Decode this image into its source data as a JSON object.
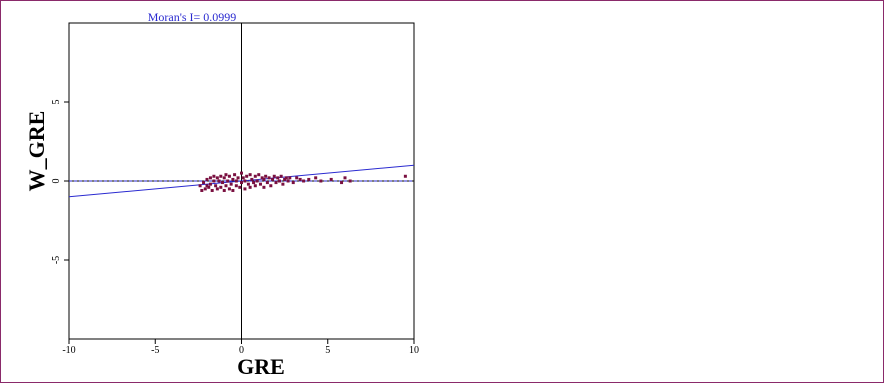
{
  "chart_data": {
    "type": "scatter",
    "title": "Moran's I= 0.0999",
    "xlabel": "GRE",
    "ylabel": "W_GRE",
    "xlim": [
      -10,
      10
    ],
    "ylim": [
      -10,
      10
    ],
    "x_ticks": [
      -10,
      -5,
      0,
      5,
      10
    ],
    "y_ticks": [
      -5,
      0,
      5
    ],
    "x_tick_labels": [
      "-10",
      "-5",
      "0",
      "5",
      "10"
    ],
    "y_tick_labels": [
      "-5",
      "0",
      "5"
    ],
    "regression_slope": 0.0999,
    "grid": false,
    "colors": {
      "points": "#7a1040",
      "regression_line": "#2a2ad0",
      "title": "#2a2ad0",
      "reference_line": "#000000",
      "frame": "#8a2a6a"
    },
    "points": [
      [
        -2.4,
        -0.3
      ],
      [
        -2.3,
        -0.6
      ],
      [
        -2.2,
        -0.1
      ],
      [
        -2.1,
        -0.5
      ],
      [
        -2.0,
        0.1
      ],
      [
        -2.0,
        -0.3
      ],
      [
        -1.9,
        -0.4
      ],
      [
        -1.8,
        0.2
      ],
      [
        -1.8,
        -0.2
      ],
      [
        -1.7,
        -0.6
      ],
      [
        -1.6,
        0.0
      ],
      [
        -1.6,
        0.3
      ],
      [
        -1.5,
        -0.3
      ],
      [
        -1.4,
        -0.5
      ],
      [
        -1.4,
        0.2
      ],
      [
        -1.3,
        0.0
      ],
      [
        -1.2,
        -0.4
      ],
      [
        -1.2,
        0.3
      ],
      [
        -1.1,
        -0.1
      ],
      [
        -1.0,
        -0.6
      ],
      [
        -1.0,
        0.2
      ],
      [
        -0.9,
        0.4
      ],
      [
        -0.9,
        -0.3
      ],
      [
        -0.8,
        0.0
      ],
      [
        -0.7,
        -0.5
      ],
      [
        -0.7,
        0.3
      ],
      [
        -0.6,
        -0.2
      ],
      [
        -0.5,
        0.1
      ],
      [
        -0.5,
        -0.6
      ],
      [
        -0.4,
        0.4
      ],
      [
        -0.3,
        -0.3
      ],
      [
        -0.3,
        0.0
      ],
      [
        -0.2,
        0.2
      ],
      [
        -0.1,
        -0.4
      ],
      [
        0.0,
        0.5
      ],
      [
        0.0,
        -0.1
      ],
      [
        0.1,
        0.2
      ],
      [
        0.2,
        -0.5
      ],
      [
        0.2,
        0.0
      ],
      [
        0.3,
        0.3
      ],
      [
        0.4,
        -0.2
      ],
      [
        0.5,
        0.4
      ],
      [
        0.5,
        -0.4
      ],
      [
        0.6,
        0.1
      ],
      [
        0.7,
        -0.1
      ],
      [
        0.8,
        0.3
      ],
      [
        0.8,
        -0.3
      ],
      [
        0.9,
        0.0
      ],
      [
        1.0,
        0.4
      ],
      [
        1.1,
        -0.2
      ],
      [
        1.2,
        0.2
      ],
      [
        1.3,
        -0.4
      ],
      [
        1.3,
        0.1
      ],
      [
        1.4,
        0.3
      ],
      [
        1.5,
        -0.1
      ],
      [
        1.6,
        0.2
      ],
      [
        1.7,
        -0.3
      ],
      [
        1.8,
        0.1
      ],
      [
        1.9,
        0.3
      ],
      [
        2.0,
        -0.1
      ],
      [
        2.1,
        0.2
      ],
      [
        2.2,
        0.0
      ],
      [
        2.3,
        0.3
      ],
      [
        2.4,
        -0.2
      ],
      [
        2.5,
        0.1
      ],
      [
        2.6,
        0.2
      ],
      [
        2.7,
        0.0
      ],
      [
        2.8,
        0.2
      ],
      [
        3.0,
        -0.1
      ],
      [
        3.2,
        0.2
      ],
      [
        3.4,
        0.1
      ],
      [
        3.6,
        0.0
      ],
      [
        3.9,
        0.1
      ],
      [
        4.3,
        0.2
      ],
      [
        4.6,
        0.0
      ],
      [
        5.2,
        0.1
      ],
      [
        5.8,
        -0.1
      ],
      [
        6.0,
        0.2
      ],
      [
        6.3,
        0.0
      ],
      [
        9.5,
        0.3
      ]
    ]
  }
}
